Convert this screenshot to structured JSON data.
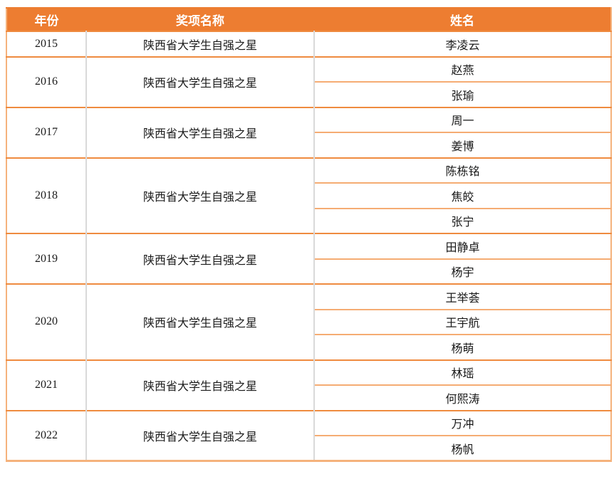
{
  "table": {
    "columns": [
      {
        "label": "年份"
      },
      {
        "label": "奖项名称"
      },
      {
        "label": "姓名"
      }
    ],
    "award_name": "陕西省大学生自强之星",
    "groups": [
      {
        "year": "2015",
        "names": [
          "李凌云"
        ]
      },
      {
        "year": "2016",
        "names": [
          "赵燕",
          "张瑜"
        ]
      },
      {
        "year": "2017",
        "names": [
          "周一",
          "姜博"
        ]
      },
      {
        "year": "2018",
        "names": [
          "陈栋铭",
          "焦皎",
          "张宁"
        ]
      },
      {
        "year": "2019",
        "names": [
          "田静卓",
          "杨宇"
        ]
      },
      {
        "year": "2020",
        "names": [
          "王举荟",
          "王宇航",
          "杨萌"
        ]
      },
      {
        "year": "2021",
        "names": [
          "林瑶",
          "何熙涛"
        ]
      },
      {
        "year": "2022",
        "names": [
          "万冲",
          "杨帆"
        ]
      }
    ],
    "colors": {
      "header_bg": "#ED7D31",
      "header_text": "#FFFFFF",
      "group_border": "#EF8B3F",
      "inner_border": "#F5AC73",
      "outer_border": "#F5B27C",
      "column_divider": "#D9D9D9",
      "body_text": "#1A1A1A"
    }
  }
}
